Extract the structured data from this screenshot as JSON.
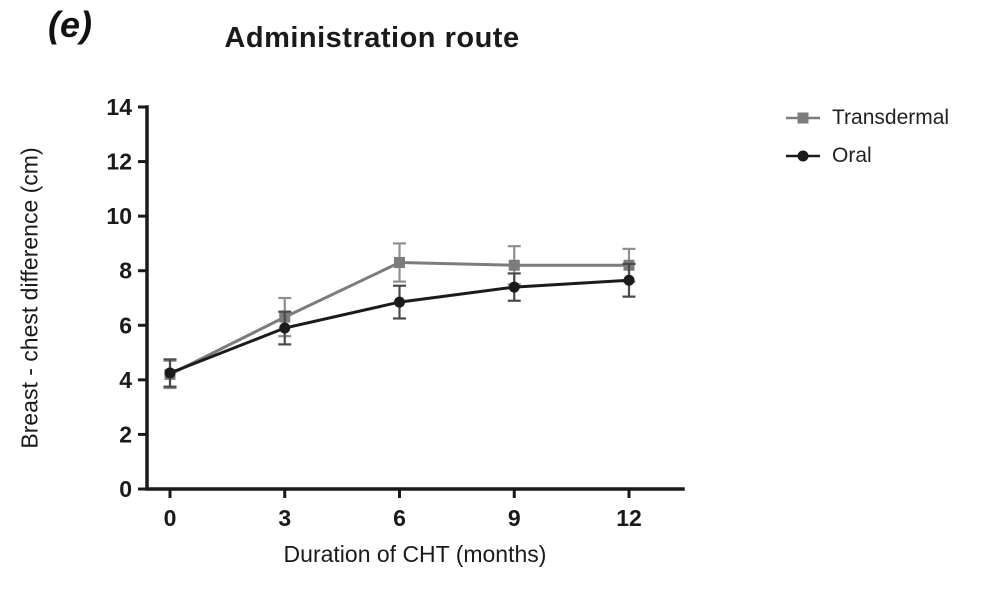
{
  "panel_label": "(e)",
  "chart_data": {
    "type": "line",
    "title": "Administration route",
    "xlabel": "Duration of CHT (months)",
    "ylabel": "Breast - chest difference (cm)",
    "x": [
      0,
      3,
      6,
      9,
      12
    ],
    "ylim": [
      0,
      14
    ],
    "yticks": [
      0,
      2,
      4,
      6,
      8,
      10,
      12,
      14
    ],
    "grid": false,
    "legend_position": "right",
    "series": [
      {
        "name": "Transdermal",
        "marker": "square",
        "color": "#7c7c7c",
        "error_color": "#8f8f8f",
        "values": [
          4.2,
          6.3,
          8.3,
          8.2,
          8.2
        ],
        "errors": [
          0.5,
          0.7,
          0.7,
          0.7,
          0.6
        ]
      },
      {
        "name": "Oral",
        "marker": "circle",
        "color": "#1b1b1b",
        "error_color": "#4a4a4a",
        "values": [
          4.25,
          5.9,
          6.85,
          7.4,
          7.65
        ],
        "errors": [
          0.5,
          0.6,
          0.6,
          0.5,
          0.6
        ]
      }
    ]
  }
}
